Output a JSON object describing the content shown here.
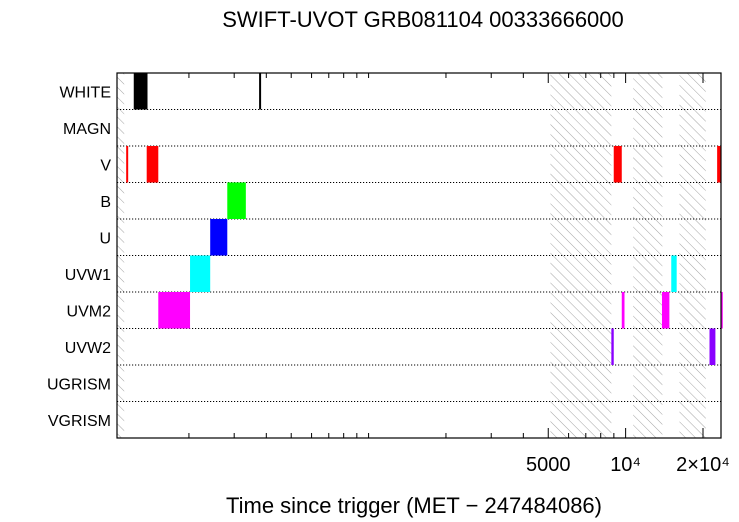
{
  "chart_data": {
    "type": "timeline",
    "title": "SWIFT-UVOT GRB081104 00333666000",
    "xlabel": "Time since trigger (MET − 247484086)",
    "x_scale": "log",
    "xlim": [
      105,
      23500
    ],
    "x_ticks": [
      {
        "value": 5000,
        "label": "5000"
      },
      {
        "value": 10000,
        "label": "10⁴"
      },
      {
        "value": 20000,
        "label": "2×10⁴"
      }
    ],
    "filters": [
      "WHITE",
      "MAGN",
      "V",
      "B",
      "U",
      "UVW1",
      "UVM2",
      "UVW2",
      "UGRISM",
      "VGRISM"
    ],
    "gaps": [
      [
        105,
        112
      ],
      [
        5100,
        8800
      ],
      [
        10700,
        13900
      ],
      [
        16200,
        20500
      ]
    ],
    "colors": {
      "WHITE": "#000000",
      "V": "#ff0000",
      "B": "#00ff00",
      "U": "#0000ff",
      "UVW1": "#00ffff",
      "UVM2": "#ff00ff",
      "UVW2": "#8a00ff"
    },
    "exposures": [
      {
        "filter": "WHITE",
        "start": 122,
        "end": 138
      },
      {
        "filter": "WHITE",
        "start": 375,
        "end": 380
      },
      {
        "filter": "V",
        "start": 114,
        "end": 115
      },
      {
        "filter": "V",
        "start": 137,
        "end": 152
      },
      {
        "filter": "V",
        "start": 8990,
        "end": 9660
      },
      {
        "filter": "V",
        "start": 22700,
        "end": 23450
      },
      {
        "filter": "B",
        "start": 282,
        "end": 333
      },
      {
        "filter": "U",
        "start": 242,
        "end": 282
      },
      {
        "filter": "UVW1",
        "start": 202,
        "end": 242
      },
      {
        "filter": "UVW1",
        "start": 15050,
        "end": 15800
      },
      {
        "filter": "UVM2",
        "start": 152,
        "end": 202
      },
      {
        "filter": "UVM2",
        "start": 9660,
        "end": 9900
      },
      {
        "filter": "UVM2",
        "start": 13850,
        "end": 14800
      },
      {
        "filter": "UVM2",
        "start": 23450,
        "end": 23700
      },
      {
        "filter": "UVW2",
        "start": 8800,
        "end": 8990
      },
      {
        "filter": "UVW2",
        "start": 21200,
        "end": 22350
      }
    ]
  }
}
